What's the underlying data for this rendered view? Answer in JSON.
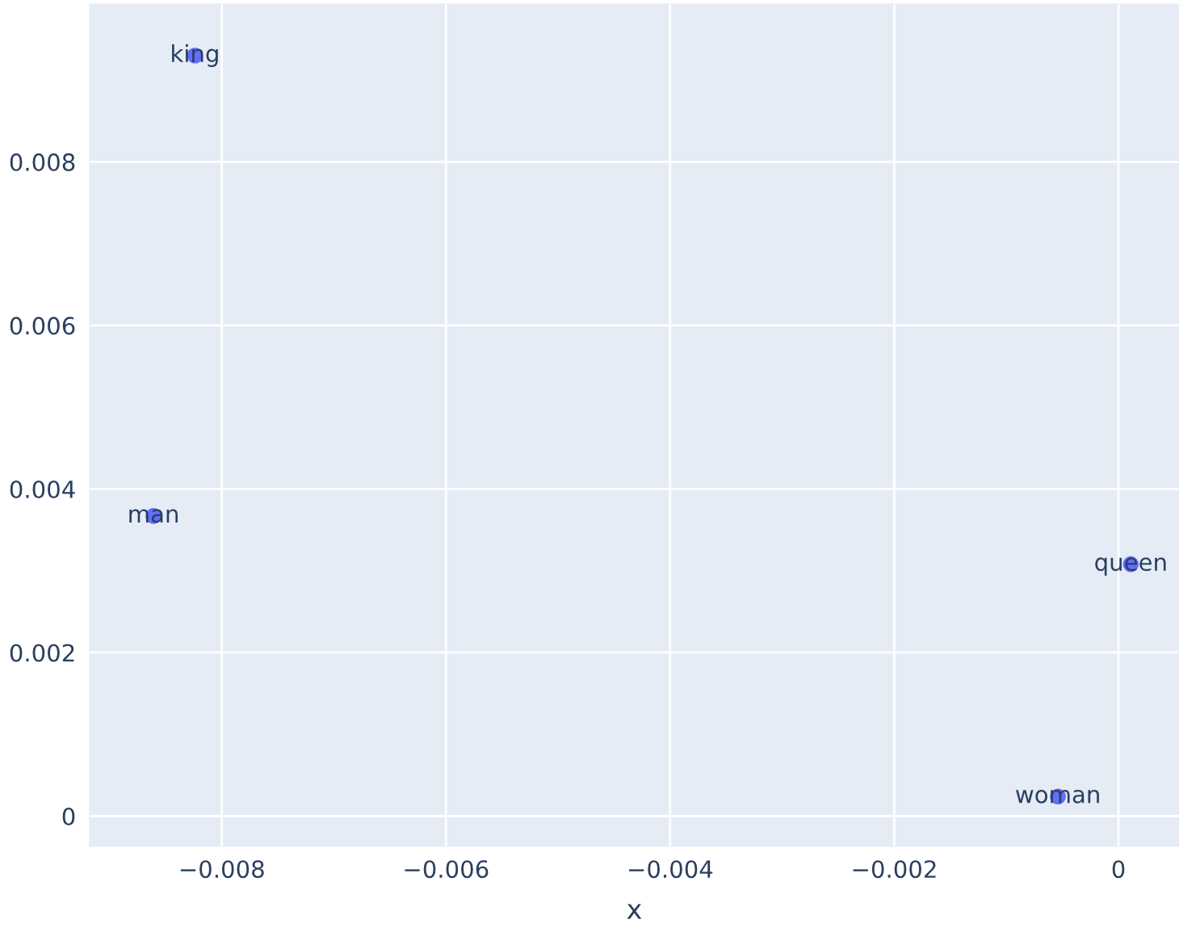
{
  "chart_data": {
    "type": "scatter",
    "xlabel": "x",
    "x": [
      -0.00824,
      -0.00861,
      0.00011,
      -0.00054
    ],
    "values": [
      0.0093,
      0.00367,
      0.00308,
      0.00024
    ],
    "color": "#636efa",
    "marker": "circle",
    "grid": true,
    "xlim": [
      -0.00918,
      0.00054
    ],
    "ylim": [
      -0.00037,
      0.00993
    ],
    "xticks": [
      {
        "value": -0.008,
        "label": "−0.008"
      },
      {
        "value": -0.006,
        "label": "−0.006"
      },
      {
        "value": -0.004,
        "label": "−0.004"
      },
      {
        "value": -0.002,
        "label": "−0.002"
      },
      0
    ],
    "yticks": [
      0,
      0.002,
      0.004,
      0.006,
      0.008
    ],
    "annotations": [
      {
        "text": "king",
        "x": -0.00824,
        "y": 0.0093
      },
      {
        "text": "man",
        "x": -0.00861,
        "y": 0.00367
      },
      {
        "text": "queen",
        "x": 0.00011,
        "y": 0.00308
      },
      {
        "text": "woman",
        "x": -0.00054,
        "y": 0.00024
      }
    ]
  }
}
